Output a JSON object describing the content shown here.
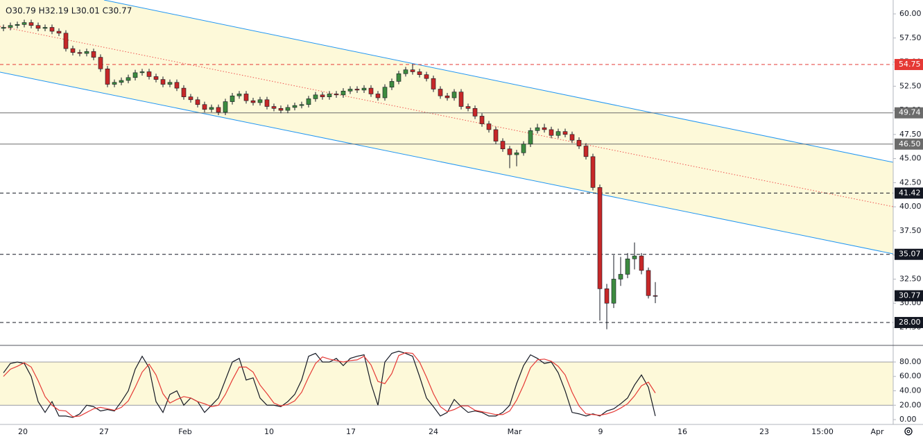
{
  "chart_data": [
    {
      "type": "candlestick",
      "header": "O30.79 H32.19 L30.01 C30.77",
      "up_color": "#3d8b40",
      "down_color": "#c62828",
      "open": [
        58.5,
        58.6,
        58.8,
        58.9,
        59.1,
        58.8,
        58.5,
        58.6,
        58.2,
        58.0,
        56.4,
        56.0,
        55.9,
        56.1,
        55.5,
        54.3,
        52.7,
        52.9,
        53.1,
        53.4,
        53.9,
        54.0,
        53.5,
        53.2,
        52.7,
        52.9,
        52.3,
        51.4,
        51.1,
        50.6,
        50.1,
        50.3,
        49.8,
        50.9,
        51.5,
        51.7,
        51.0,
        50.8,
        51.1,
        50.4,
        50.2,
        50.0,
        50.3,
        50.5,
        50.6,
        51.2,
        51.6,
        51.4,
        51.7,
        51.6,
        52.0,
        52.2,
        52.1,
        52.3,
        51.7,
        51.3,
        52.4,
        53.0,
        53.8,
        54.2,
        54.0,
        53.7,
        53.3,
        52.2,
        51.5,
        51.3,
        51.9,
        50.4,
        50.2,
        49.4,
        48.6,
        48.0,
        46.8,
        46.0,
        45.4,
        45.6,
        46.5,
        47.9,
        48.2,
        48.0,
        47.4,
        47.8,
        47.5,
        46.9,
        46.3,
        45.2,
        42.0,
        31.5,
        30.0,
        32.5,
        33.0,
        34.6,
        34.9,
        33.4,
        30.79
      ],
      "high": [
        58.9,
        59.1,
        59.2,
        59.4,
        59.4,
        59.1,
        58.9,
        58.9,
        58.5,
        58.3,
        56.7,
        56.3,
        56.4,
        56.4,
        55.8,
        54.6,
        53.2,
        53.4,
        53.7,
        54.2,
        54.3,
        54.3,
        53.8,
        53.5,
        53.2,
        53.2,
        52.6,
        51.7,
        51.4,
        50.9,
        50.6,
        50.6,
        51.2,
        51.8,
        52.0,
        52.0,
        51.3,
        51.4,
        51.4,
        50.7,
        50.5,
        50.6,
        50.8,
        50.9,
        51.5,
        51.9,
        51.9,
        52.0,
        52.0,
        52.3,
        52.5,
        52.5,
        52.6,
        52.6,
        52.0,
        52.7,
        53.3,
        54.1,
        54.5,
        54.8,
        54.3,
        54.0,
        53.6,
        52.5,
        51.8,
        52.2,
        52.2,
        50.7,
        50.5,
        49.7,
        48.9,
        48.3,
        47.1,
        46.3,
        45.9,
        46.8,
        48.2,
        48.6,
        48.6,
        48.3,
        48.1,
        48.1,
        47.8,
        47.2,
        46.6,
        45.5,
        42.3,
        32.0,
        35.0,
        34.8,
        35.2,
        36.3,
        35.2,
        33.7,
        32.19
      ],
      "low": [
        58.2,
        58.3,
        58.5,
        58.6,
        58.5,
        58.2,
        58.2,
        57.9,
        57.7,
        56.1,
        55.7,
        55.6,
        55.6,
        55.2,
        54.0,
        52.4,
        52.4,
        52.6,
        52.8,
        53.1,
        53.6,
        53.2,
        52.9,
        52.4,
        52.4,
        52.0,
        51.1,
        50.8,
        50.3,
        49.8,
        49.8,
        49.5,
        49.5,
        50.6,
        51.2,
        50.7,
        50.5,
        50.5,
        50.1,
        49.9,
        49.7,
        49.7,
        50.0,
        50.2,
        50.3,
        50.9,
        51.1,
        51.1,
        51.3,
        51.3,
        51.7,
        51.8,
        51.8,
        51.4,
        51.0,
        51.0,
        52.1,
        52.7,
        53.5,
        53.7,
        53.4,
        53.0,
        51.9,
        51.2,
        51.0,
        51.0,
        50.1,
        49.9,
        49.1,
        48.3,
        47.7,
        46.5,
        45.7,
        44.0,
        44.2,
        45.3,
        46.2,
        47.6,
        47.7,
        47.1,
        47.1,
        47.2,
        46.6,
        46.0,
        44.9,
        41.7,
        28.2,
        27.3,
        29.5,
        31.8,
        32.6,
        33.5,
        33.0,
        30.49,
        30.01
      ],
      "close": [
        58.6,
        58.8,
        58.9,
        59.1,
        58.8,
        58.5,
        58.6,
        58.2,
        58.0,
        56.4,
        56.0,
        55.9,
        56.1,
        55.5,
        54.3,
        52.7,
        52.9,
        53.1,
        53.4,
        53.9,
        54.0,
        53.5,
        53.2,
        52.7,
        52.9,
        52.3,
        51.4,
        51.1,
        50.6,
        50.1,
        50.3,
        49.8,
        50.9,
        51.5,
        51.7,
        51.0,
        50.8,
        51.1,
        50.4,
        50.2,
        50.0,
        50.3,
        50.5,
        50.6,
        51.2,
        51.6,
        51.4,
        51.7,
        51.6,
        52.0,
        52.2,
        52.1,
        52.3,
        51.7,
        51.3,
        52.4,
        53.0,
        53.8,
        54.2,
        54.0,
        53.7,
        53.3,
        52.2,
        51.5,
        51.3,
        51.9,
        50.4,
        50.2,
        49.4,
        48.6,
        48.0,
        46.8,
        46.0,
        45.4,
        45.6,
        46.5,
        47.9,
        48.2,
        48.0,
        47.4,
        47.8,
        47.5,
        46.9,
        46.3,
        45.2,
        42.0,
        31.5,
        30.0,
        32.5,
        33.0,
        34.6,
        34.9,
        33.4,
        30.79,
        30.77
      ],
      "xlim": [
        -0.5,
        128.3
      ],
      "xticks": [
        {
          "value": 2.8,
          "label": "20"
        },
        {
          "value": 14.5,
          "label": "27"
        },
        {
          "value": 26.2,
          "label": "Feb"
        },
        {
          "value": 38.3,
          "label": "10"
        },
        {
          "value": 50.1,
          "label": "17"
        },
        {
          "value": 62,
          "label": "24"
        },
        {
          "value": 73.7,
          "label": "Mar"
        },
        {
          "value": 86.1,
          "label": "9"
        },
        {
          "value": 97.9,
          "label": "16"
        },
        {
          "value": 109.7,
          "label": "23"
        },
        {
          "value": 118.1,
          "label": "15:00"
        },
        {
          "value": 126,
          "label": "Apr"
        }
      ],
      "ylim": [
        25.63,
        61.44
      ],
      "yticks": [
        {
          "value": 27.5,
          "label": "27.50"
        },
        {
          "value": 30,
          "label": "30.00"
        },
        {
          "value": 32.5,
          "label": "32.50"
        },
        {
          "value": 35,
          "label": "35.00"
        },
        {
          "value": 37.5,
          "label": "37.50"
        },
        {
          "value": 40,
          "label": "40.00"
        },
        {
          "value": 42.5,
          "label": "42.50"
        },
        {
          "value": 45,
          "label": "45.00"
        },
        {
          "value": 47.5,
          "label": "47.50"
        },
        {
          "value": 50,
          "label": "50.00"
        },
        {
          "value": 52.5,
          "label": "52.50"
        },
        {
          "value": 55,
          "label": "55.00"
        },
        {
          "value": 57.5,
          "label": "57.50"
        },
        {
          "value": 60,
          "label": "60.00"
        }
      ],
      "levels": [
        {
          "value": 54.75,
          "label": "54.75",
          "color": "#e53935",
          "style": "dashed"
        },
        {
          "value": 49.74,
          "label": "49.74",
          "color": "#6b6b6b",
          "style": "solid"
        },
        {
          "value": 46.5,
          "label": "46.50",
          "color": "#6b6b6b",
          "style": "solid"
        },
        {
          "value": 41.42,
          "label": "41.42",
          "color": "#131722",
          "style": "dashed"
        },
        {
          "value": 35.07,
          "label": "35.07",
          "color": "#131722",
          "style": "dashed"
        },
        {
          "value": 28,
          "label": "28.00",
          "color": "#131722",
          "style": "dashed"
        },
        {
          "value": 30.77,
          "label": "30.77",
          "color": "#131722",
          "style": "none"
        }
      ],
      "channel": {
        "color": "#2196f3",
        "mid_color": "#ef5350",
        "fill": "#fdf9d9",
        "upper": [
          [
            14.5,
            61.44
          ],
          [
            128.3,
            44.61
          ]
        ],
        "mid": [
          [
            -0.5,
            58.71
          ],
          [
            128.3,
            40.01
          ]
        ],
        "lower": [
          [
            -0.5,
            53.96
          ],
          [
            128.3,
            35.12
          ]
        ]
      }
    },
    {
      "type": "line",
      "ylim": [
        -6.7,
        103.1
      ],
      "yticks": [
        {
          "value": 0,
          "label": "0.00"
        },
        {
          "value": 20,
          "label": "20.00"
        },
        {
          "value": 40,
          "label": "40.00"
        },
        {
          "value": 60,
          "label": "60.00"
        },
        {
          "value": 80,
          "label": "80.00"
        }
      ],
      "band": [
        20,
        80
      ],
      "band_fill": "#fdf9d9",
      "series": [
        {
          "color": "#131722",
          "values": [
            65,
            78,
            80,
            78,
            60,
            25,
            10,
            25,
            5,
            5,
            3,
            8,
            20,
            18,
            12,
            14,
            12,
            25,
            40,
            70,
            88,
            72,
            25,
            10,
            35,
            40,
            20,
            30,
            25,
            10,
            20,
            30,
            55,
            80,
            85,
            55,
            58,
            30,
            20,
            20,
            18,
            25,
            35,
            55,
            88,
            92,
            80,
            80,
            85,
            75,
            85,
            88,
            90,
            50,
            20,
            80,
            92,
            95,
            92,
            88,
            60,
            30,
            18,
            5,
            10,
            28,
            18,
            10,
            12,
            10,
            5,
            5,
            10,
            20,
            50,
            75,
            90,
            85,
            78,
            80,
            65,
            40,
            10,
            8,
            5,
            8,
            5,
            12,
            15,
            22,
            30,
            48,
            62,
            45,
            5
          ]
        },
        {
          "color": "#e53935",
          "values": [
            60,
            70,
            74,
            79,
            73,
            54,
            32,
            20,
            13,
            12,
            4,
            5,
            10,
            15,
            17,
            15,
            13,
            17,
            26,
            45,
            66,
            77,
            62,
            36,
            23,
            28,
            32,
            30,
            25,
            22,
            18,
            20,
            35,
            55,
            73,
            73,
            66,
            48,
            36,
            23,
            19,
            21,
            26,
            38,
            59,
            78,
            87,
            84,
            82,
            80,
            82,
            83,
            88,
            76,
            53,
            50,
            64,
            89,
            93,
            92,
            80,
            59,
            36,
            18,
            11,
            14,
            19,
            19,
            13,
            11,
            9,
            7,
            7,
            12,
            27,
            48,
            72,
            83,
            84,
            81,
            74,
            62,
            38,
            19,
            8,
            7,
            6,
            8,
            11,
            16,
            22,
            33,
            47,
            52,
            37
          ]
        }
      ]
    }
  ]
}
